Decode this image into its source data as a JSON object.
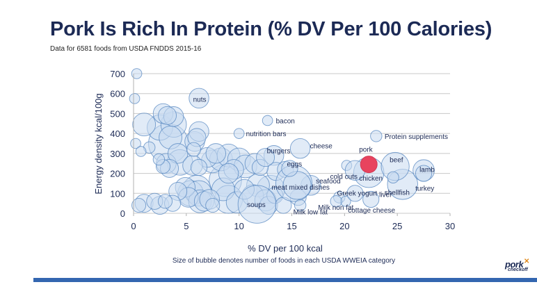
{
  "header": {
    "title": "Pork Is Rich In Protein (% DV Per 100 Calories)",
    "subtitle": "Data for 6581 foods from USDA FNDDS 2015-16"
  },
  "footer": {
    "logo_main": "pork",
    "logo_sub": "checkoff",
    "accent_color": "#3366b0"
  },
  "chart_data": {
    "type": "scatter",
    "subtype": "bubble",
    "title": "Pork Is Rich In Protein (% DV Per 100 Calories)",
    "xlabel": "% DV per 100 kcal",
    "ylabel": "Energy density kcal/100g",
    "note": "Size of bubble denotes number of foods in each USDA WWEIA category",
    "xlim": [
      0,
      30
    ],
    "ylim": [
      0,
      700
    ],
    "xticks": [
      "0",
      "5",
      "10",
      "15",
      "20",
      "25",
      "30"
    ],
    "yticks": [
      "0",
      "100",
      "200",
      "300",
      "400",
      "500",
      "600",
      "700"
    ],
    "grid": "horizontal",
    "colors": {
      "bubble_fill": "#c9dbf1",
      "bubble_stroke": "#4f81bd",
      "highlight": "#e8435e"
    },
    "labeled_points": [
      {
        "label": "nuts",
        "x": 6.2,
        "y": 577,
        "size": 30
      },
      {
        "label": "bacon",
        "x": 12.7,
        "y": 465,
        "size": 8
      },
      {
        "label": "nutrition bars",
        "x": 10.0,
        "y": 400,
        "size": 8
      },
      {
        "label": "Protein supplements",
        "x": 23.0,
        "y": 387,
        "size": 10
      },
      {
        "label": "cheese",
        "x": 15.8,
        "y": 325,
        "size": 30
      },
      {
        "label": "burgers",
        "x": 12.5,
        "y": 280,
        "size": 25
      },
      {
        "label": "pork",
        "x": 22.3,
        "y": 245,
        "size": 40,
        "highlight": true
      },
      {
        "label": "eggs",
        "x": 14.8,
        "y": 225,
        "size": 20
      },
      {
        "label": "cold cuts",
        "x": 21.0,
        "y": 215,
        "size": 30
      },
      {
        "label": "chicken",
        "x": 22.3,
        "y": 205,
        "size": 70
      },
      {
        "label": "beef",
        "x": 24.8,
        "y": 235,
        "size": 60
      },
      {
        "label": "lamb",
        "x": 27.5,
        "y": 215,
        "size": 35
      },
      {
        "label": "turkey",
        "x": 27.5,
        "y": 200,
        "size": 20
      },
      {
        "label": "shellfish",
        "x": 25.5,
        "y": 145,
        "size": 70
      },
      {
        "label": "liver",
        "x": 24.6,
        "y": 180,
        "size": 10
      },
      {
        "label": "seafood",
        "x": 15.5,
        "y": 140,
        "size": 60
      },
      {
        "label": "meat mixed dishes",
        "x": 15.2,
        "y": 150,
        "size": 100
      },
      {
        "label": "Greek yogurt",
        "x": 21.0,
        "y": 100,
        "size": 20
      },
      {
        "label": "Milk non fat",
        "x": 19.2,
        "y": 60,
        "size": 10
      },
      {
        "label": "Milk low fat",
        "x": 15.8,
        "y": 40,
        "size": 10
      },
      {
        "label": "cottage cheese",
        "x": 22.5,
        "y": 70,
        "size": 20
      },
      {
        "label": "soups",
        "x": 11.7,
        "y": 45,
        "size": 110
      }
    ],
    "unlabeled_points": [
      [
        0.3,
        700,
        8
      ],
      [
        0.1,
        575,
        8
      ],
      [
        0.2,
        350,
        8
      ],
      [
        0.7,
        310,
        8
      ],
      [
        1.0,
        445,
        40
      ],
      [
        1.5,
        330,
        10
      ],
      [
        2.4,
        270,
        10
      ],
      [
        2.8,
        500,
        30
      ],
      [
        2.5,
        430,
        50
      ],
      [
        3.2,
        490,
        25
      ],
      [
        3.8,
        485,
        30
      ],
      [
        3.8,
        445,
        50
      ],
      [
        3.5,
        380,
        40
      ],
      [
        3.3,
        350,
        120
      ],
      [
        3.1,
        250,
        30
      ],
      [
        3.4,
        225,
        25
      ],
      [
        2.8,
        235,
        15
      ],
      [
        4.2,
        300,
        30
      ],
      [
        4.4,
        255,
        50
      ],
      [
        5.8,
        360,
        30
      ],
      [
        6.0,
        380,
        25
      ],
      [
        6.2,
        410,
        30
      ],
      [
        5.7,
        320,
        15
      ],
      [
        7.0,
        280,
        30
      ],
      [
        5.6,
        240,
        30
      ],
      [
        6.2,
        230,
        20
      ],
      [
        7.5,
        260,
        40
      ],
      [
        7.8,
        300,
        30
      ],
      [
        8.3,
        270,
        40
      ],
      [
        9.0,
        290,
        40
      ],
      [
        10.0,
        270,
        40
      ],
      [
        10.6,
        235,
        40
      ],
      [
        9.5,
        220,
        30
      ],
      [
        8.7,
        165,
        80
      ],
      [
        8.5,
        120,
        40
      ],
      [
        9.0,
        200,
        30
      ],
      [
        11.5,
        250,
        30
      ],
      [
        12.0,
        230,
        20
      ],
      [
        13.3,
        290,
        30
      ],
      [
        13.5,
        210,
        25
      ],
      [
        14.4,
        220,
        20
      ],
      [
        13.0,
        120,
        60
      ],
      [
        11.8,
        140,
        40
      ],
      [
        1.0,
        50,
        25
      ],
      [
        0.5,
        40,
        15
      ],
      [
        2.0,
        60,
        20
      ],
      [
        2.5,
        40,
        25
      ],
      [
        3.0,
        60,
        15
      ],
      [
        3.7,
        50,
        20
      ],
      [
        4.2,
        110,
        25
      ],
      [
        4.9,
        130,
        30
      ],
      [
        5.4,
        100,
        50
      ],
      [
        5.2,
        80,
        30
      ],
      [
        6.0,
        120,
        60
      ],
      [
        6.2,
        100,
        50
      ],
      [
        6.3,
        60,
        40
      ],
      [
        6.7,
        60,
        30
      ],
      [
        7.2,
        70,
        30
      ],
      [
        7.5,
        40,
        15
      ],
      [
        9.0,
        70,
        60
      ],
      [
        9.8,
        55,
        35
      ],
      [
        10.5,
        120,
        30
      ],
      [
        11.3,
        90,
        35
      ],
      [
        12.5,
        65,
        35
      ],
      [
        12.8,
        40,
        25
      ],
      [
        13.4,
        90,
        20
      ],
      [
        14.2,
        40,
        20
      ],
      [
        15.6,
        80,
        20
      ],
      [
        16.8,
        140,
        30
      ],
      [
        19.5,
        80,
        10
      ],
      [
        20.1,
        60,
        8
      ],
      [
        20.2,
        240,
        8
      ]
    ]
  }
}
